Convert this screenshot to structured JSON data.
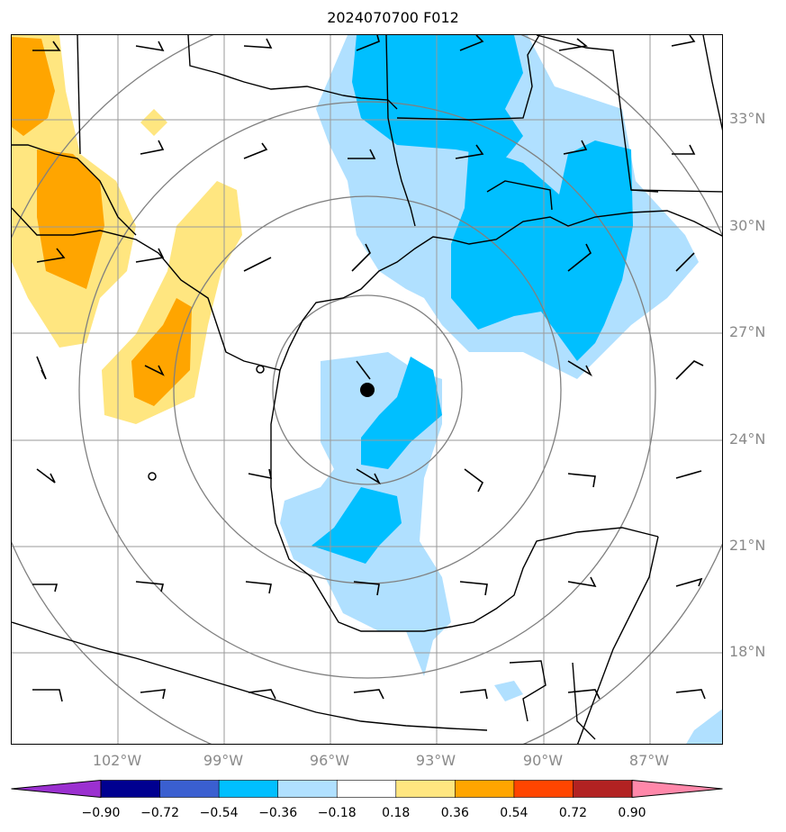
{
  "title": "2024070700 F012",
  "lat_labels": [
    "33°N",
    "30°N",
    "27°N",
    "24°N",
    "21°N",
    "18°N"
  ],
  "lon_labels": [
    "102°W",
    "99°W",
    "96°W",
    "93°W",
    "90°W",
    "87°W"
  ],
  "colorbar": {
    "ticks": [
      "−0.90",
      "−0.72",
      "−0.54",
      "−0.36",
      "−0.18",
      "0.18",
      "0.36",
      "0.54",
      "0.72",
      "0.90"
    ],
    "colors": [
      "#9b30d0",
      "#000090",
      "#3a5fd0",
      "#00bfff",
      "#b0e0ff",
      "#ffffff",
      "#ffe680",
      "#ffa500",
      "#ff4500",
      "#b22222",
      "#ff88aa"
    ]
  },
  "colors": {
    "light_blue": "#b0e0ff",
    "blue": "#00bfff",
    "light_yellow": "#ffe680",
    "orange": "#ffa500",
    "grid": "#9a9a9a",
    "range_rings": "#808080"
  },
  "center_marker": "storm-center-dot"
}
